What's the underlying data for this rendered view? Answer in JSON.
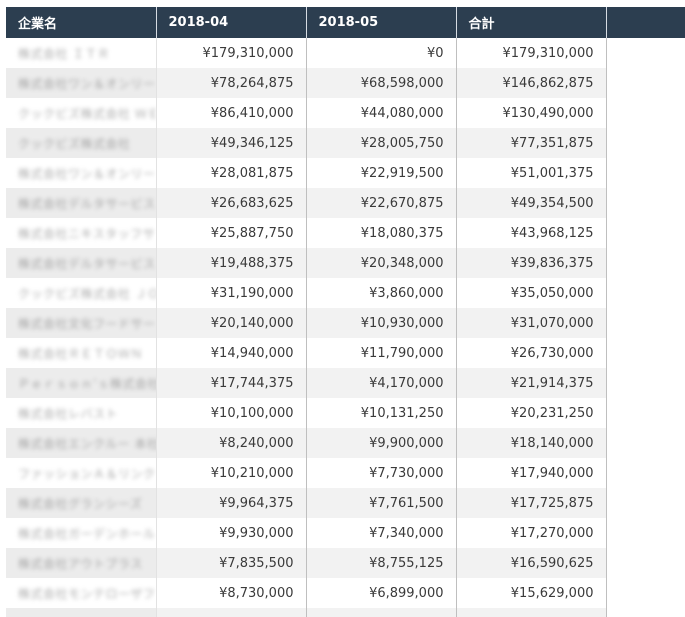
{
  "grid": {
    "columns": [
      "企業名",
      "2018-04",
      "2018-05",
      "合計"
    ],
    "rows": [
      {
        "company": "株式会社 ＩＴＲ",
        "m04": "¥179,310,000",
        "m05": "¥0",
        "total": "¥179,310,000"
      },
      {
        "company": "株式会社ワン＆オンリー",
        "m04": "¥78,264,875",
        "m05": "¥68,598,000",
        "total": "¥146,862,875"
      },
      {
        "company": "クックビズ株式会社 ＷＥＢ",
        "m04": "¥86,410,000",
        "m05": "¥44,080,000",
        "total": "¥130,490,000"
      },
      {
        "company": "クックビズ株式会社",
        "m04": "¥49,346,125",
        "m05": "¥28,005,750",
        "total": "¥77,351,875"
      },
      {
        "company": "株式会社ワン＆オンリー",
        "m04": "¥28,081,875",
        "m05": "¥22,919,500",
        "total": "¥51,001,375"
      },
      {
        "company": "株式会社デルタサービス",
        "m04": "¥26,683,625",
        "m05": "¥22,670,875",
        "total": "¥49,354,500"
      },
      {
        "company": "株式会社ニキスタッフサ",
        "m04": "¥25,887,750",
        "m05": "¥18,080,375",
        "total": "¥43,968,125"
      },
      {
        "company": "株式会社デルタサービス",
        "m04": "¥19,488,375",
        "m05": "¥20,348,000",
        "total": "¥39,836,375"
      },
      {
        "company": "クックビズ株式会社 ＪＯＢ",
        "m04": "¥31,190,000",
        "m05": "¥3,860,000",
        "total": "¥35,050,000"
      },
      {
        "company": "株式会社文化フードサー",
        "m04": "¥20,140,000",
        "m05": "¥10,930,000",
        "total": "¥31,070,000"
      },
      {
        "company": "株式会社ＲＥＴＯＷＮ",
        "m04": "¥14,940,000",
        "m05": "¥11,790,000",
        "total": "¥26,730,000"
      },
      {
        "company": "Ｐｅｒｓｏｎ’ｓ株式会社",
        "m04": "¥17,744,375",
        "m05": "¥4,170,000",
        "total": "¥21,914,375"
      },
      {
        "company": "株式会社レバスト",
        "m04": "¥10,100,000",
        "m05": "¥10,131,250",
        "total": "¥20,231,250"
      },
      {
        "company": "株式会社エンクルー 本社",
        "m04": "¥8,240,000",
        "m05": "¥9,900,000",
        "total": "¥18,140,000"
      },
      {
        "company": "ファッションＡ＆リンク",
        "m04": "¥10,210,000",
        "m05": "¥7,730,000",
        "total": "¥17,940,000"
      },
      {
        "company": "株式会社グランシーズ",
        "m04": "¥9,964,375",
        "m05": "¥7,761,500",
        "total": "¥17,725,875"
      },
      {
        "company": "株式会社ガーデンホール",
        "m04": "¥9,930,000",
        "m05": "¥7,340,000",
        "total": "¥17,270,000"
      },
      {
        "company": "株式会社アウトプラス",
        "m04": "¥7,835,500",
        "m05": "¥8,755,125",
        "total": "¥16,590,625"
      },
      {
        "company": "株式会社モンテローザフ",
        "m04": "¥8,730,000",
        "m05": "¥6,899,000",
        "total": "¥15,629,000"
      },
      {
        "company": "",
        "m04": "",
        "m05": "",
        "total": ""
      }
    ]
  },
  "colors": {
    "header_bg": "#2c3e50",
    "header_text": "#ffffff",
    "row_alt_bg": "#f2f2f2"
  }
}
